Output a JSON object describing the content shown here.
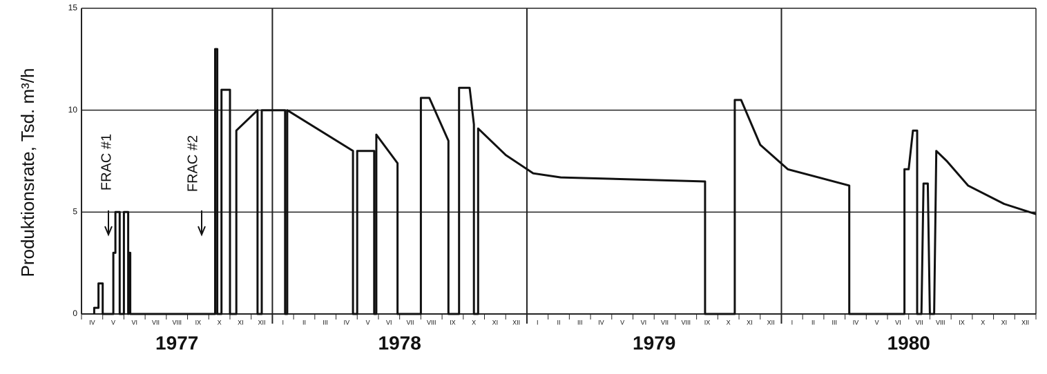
{
  "chart_data": {
    "type": "line",
    "y_label": "Produktionsrate, Tsd. m³/h",
    "annotations": [
      "FRAC #1",
      "FRAC #2"
    ],
    "color": "#111111",
    "grid": true,
    "ylim": [
      0,
      15
    ],
    "yticks": [
      0,
      5,
      10,
      15
    ],
    "xlim": [
      3,
      48
    ],
    "xticks": [
      {
        "value": 3,
        "label": "IV"
      },
      {
        "value": 4,
        "label": "V"
      },
      {
        "value": 5,
        "label": "VI"
      },
      {
        "value": 6,
        "label": "VII"
      },
      {
        "value": 7,
        "label": "VIII"
      },
      {
        "value": 8,
        "label": "IX"
      },
      {
        "value": 9,
        "label": "X"
      },
      {
        "value": 10,
        "label": "XI"
      },
      {
        "value": 11,
        "label": "XII"
      },
      {
        "value": 12,
        "label": "I"
      },
      {
        "value": 13,
        "label": "II"
      },
      {
        "value": 14,
        "label": "III"
      },
      {
        "value": 15,
        "label": "IV"
      },
      {
        "value": 16,
        "label": "V"
      },
      {
        "value": 17,
        "label": "VI"
      },
      {
        "value": 18,
        "label": "VII"
      },
      {
        "value": 19,
        "label": "VIII"
      },
      {
        "value": 20,
        "label": "IX"
      },
      {
        "value": 21,
        "label": "X"
      },
      {
        "value": 22,
        "label": "XI"
      },
      {
        "value": 23,
        "label": "XII"
      },
      {
        "value": 24,
        "label": "I"
      },
      {
        "value": 25,
        "label": "II"
      },
      {
        "value": 26,
        "label": "III"
      },
      {
        "value": 27,
        "label": "IV"
      },
      {
        "value": 28,
        "label": "V"
      },
      {
        "value": 29,
        "label": "VI"
      },
      {
        "value": 30,
        "label": "VII"
      },
      {
        "value": 31,
        "label": "VIII"
      },
      {
        "value": 32,
        "label": "IX"
      },
      {
        "value": 33,
        "label": "X"
      },
      {
        "value": 34,
        "label": "XI"
      },
      {
        "value": 35,
        "label": "XII"
      },
      {
        "value": 36,
        "label": "I"
      },
      {
        "value": 37,
        "label": "II"
      },
      {
        "value": 38,
        "label": "III"
      },
      {
        "value": 39,
        "label": "IV"
      },
      {
        "value": 40,
        "label": "V"
      },
      {
        "value": 41,
        "label": "VI"
      },
      {
        "value": 42,
        "label": "VII"
      },
      {
        "value": 43,
        "label": "VIII"
      },
      {
        "value": 44,
        "label": "IX"
      },
      {
        "value": 45,
        "label": "X"
      },
      {
        "value": 46,
        "label": "XI"
      },
      {
        "value": 47,
        "label": "XII"
      }
    ],
    "year_ticks": [
      {
        "value": 0,
        "label": "1977"
      },
      {
        "value": 12,
        "label": "1978"
      },
      {
        "value": 24,
        "label": "1979"
      },
      {
        "value": 36,
        "label": "1980"
      }
    ],
    "x": [
      3.6,
      3.6,
      3.8,
      3.8,
      4.0,
      4.0,
      4.5,
      4.5,
      4.6,
      4.6,
      4.8,
      4.8,
      5.0,
      5.0,
      5.2,
      5.2,
      5.2,
      5.3,
      5.3,
      9.3,
      9.3,
      9.4,
      9.4,
      9.6,
      9.6,
      10.0,
      10.0,
      10.3,
      10.3,
      11.3,
      11.3,
      11.5,
      11.5,
      12.6,
      12.6,
      12.7,
      12.7,
      15.8,
      15.8,
      16.0,
      16.0,
      16.8,
      16.8,
      16.9,
      16.9,
      17.9,
      17.9,
      19.0,
      19.0,
      19.4,
      20.3,
      20.3,
      20.8,
      20.8,
      21.3,
      21.5,
      21.5,
      21.7,
      21.7,
      23.0,
      24.3,
      25.6,
      32.4,
      32.4,
      33.8,
      33.8,
      34.1,
      35.0,
      36.3,
      39.2,
      39.2,
      41.8,
      41.8,
      42.0,
      42.2,
      42.4,
      42.4,
      42.6,
      42.7,
      42.9,
      43.0,
      43.2,
      43.3,
      43.8,
      44.8,
      46.5,
      48.0
    ],
    "values": [
      0,
      0.3,
      0.3,
      1.5,
      1.5,
      0,
      0,
      3,
      3,
      5,
      5,
      0,
      0,
      5,
      5,
      0,
      3,
      3,
      0,
      0,
      13,
      13,
      0,
      0,
      11,
      11,
      0,
      0,
      9,
      10,
      0,
      0,
      10,
      10,
      0,
      0,
      10,
      8,
      0,
      0,
      8,
      8,
      0,
      0,
      8.8,
      7.4,
      0,
      0,
      10.6,
      10.6,
      8.5,
      0,
      0,
      11.1,
      11.1,
      9.3,
      0,
      0,
      9.1,
      7.8,
      6.9,
      6.7,
      6.5,
      0,
      0,
      10.5,
      10.5,
      8.3,
      7.1,
      6.3,
      0,
      0,
      7.1,
      7.1,
      9.0,
      9.0,
      0,
      0,
      6.4,
      6.4,
      0,
      0,
      8.0,
      7.5,
      6.3,
      5.4,
      4.9
    ]
  }
}
